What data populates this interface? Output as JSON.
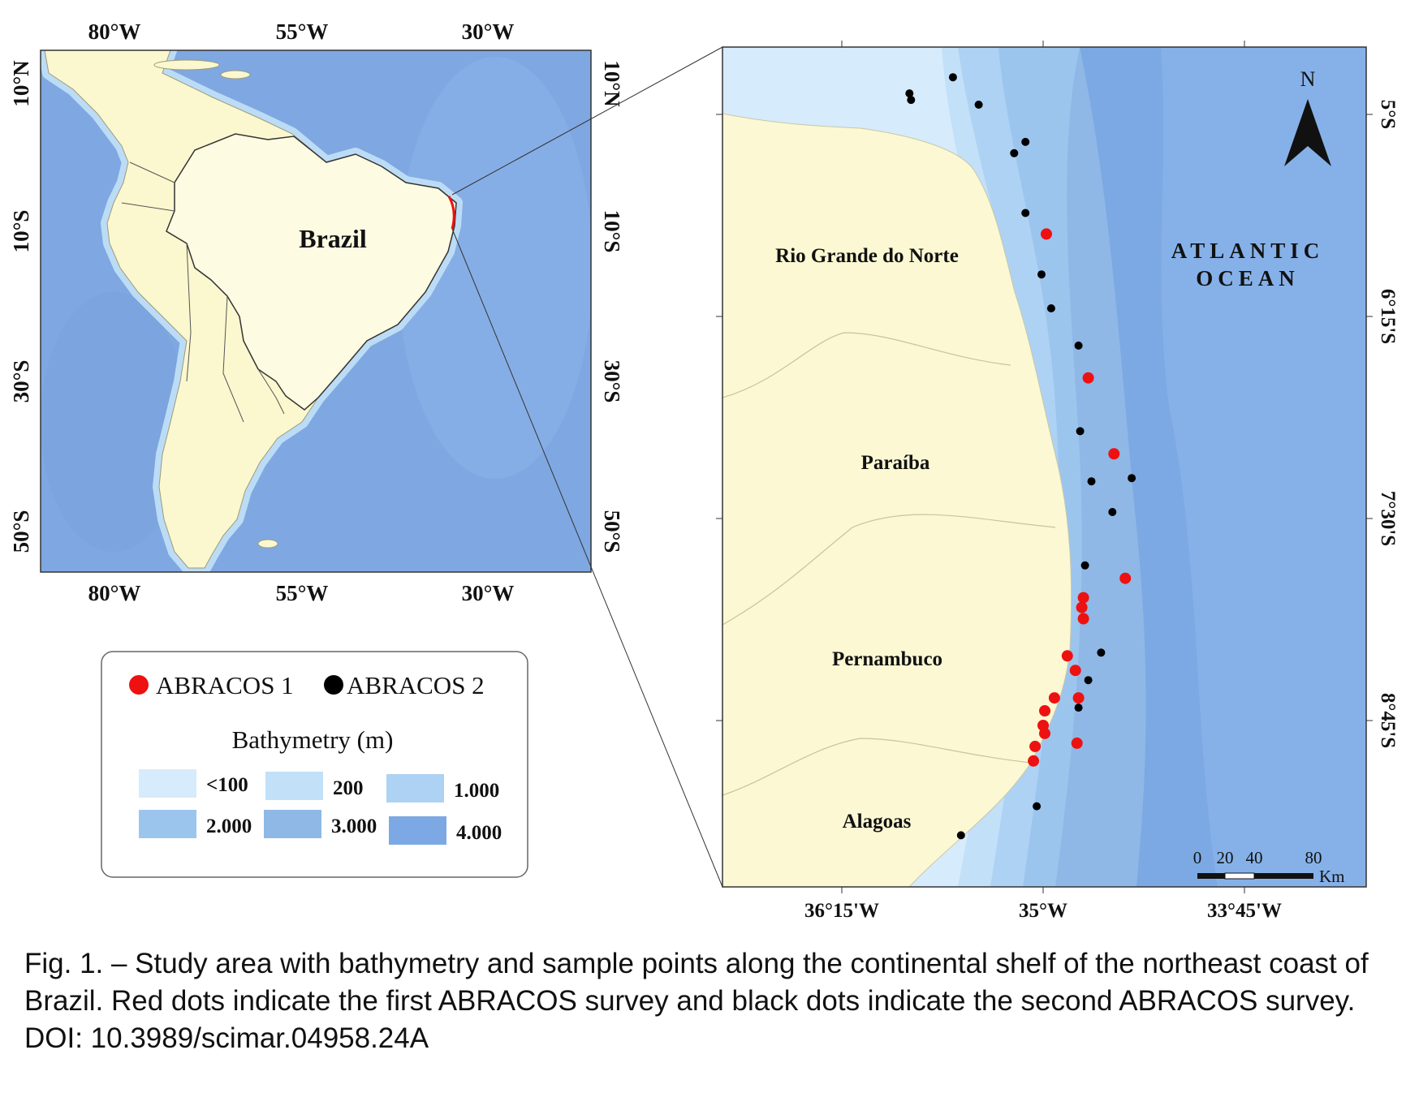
{
  "overview_map": {
    "country_label": "Brazil",
    "top_ticks": [
      "80°W",
      "55°W",
      "30°W"
    ],
    "bottom_ticks": [
      "80°W",
      "55°W",
      "30°W"
    ],
    "left_ticks": [
      "10°N",
      "10°S",
      "30°S",
      "50°S"
    ],
    "right_ticks": [
      "10°N",
      "10°S",
      "30°S",
      "50°S"
    ]
  },
  "detail_map": {
    "north_label": "N",
    "ocean_label_line1": "ATLANTIC",
    "ocean_label_line2": "OCEAN",
    "states": [
      "Rio Grande do Norte",
      "Paraíba",
      "Pernambuco",
      "Alagoas"
    ],
    "bottom_ticks": [
      "36°15'W",
      "35°W",
      "33°45'W"
    ],
    "right_ticks": [
      "5°S",
      "6°15'S",
      "7°30'S",
      "8°45'S"
    ],
    "scale_bar": {
      "labels": [
        "0",
        "20",
        "40",
        "80"
      ],
      "unit": "Km"
    },
    "survey_points": {
      "abracos1": [
        {
          "lon": -34.98,
          "lat": -5.74
        },
        {
          "lon": -34.72,
          "lat": -6.63
        },
        {
          "lon": -34.56,
          "lat": -7.1
        },
        {
          "lon": -34.49,
          "lat": -7.87
        },
        {
          "lon": -34.75,
          "lat": -7.99
        },
        {
          "lon": -34.76,
          "lat": -8.05
        },
        {
          "lon": -34.75,
          "lat": -8.12
        },
        {
          "lon": -34.85,
          "lat": -8.35
        },
        {
          "lon": -34.8,
          "lat": -8.44
        },
        {
          "lon": -34.93,
          "lat": -8.61
        },
        {
          "lon": -34.78,
          "lat": -8.61
        },
        {
          "lon": -34.99,
          "lat": -8.69
        },
        {
          "lon": -35.0,
          "lat": -8.78
        },
        {
          "lon": -34.99,
          "lat": -8.83
        },
        {
          "lon": -35.05,
          "lat": -8.91
        },
        {
          "lon": -35.06,
          "lat": -9.0
        },
        {
          "lon": -34.79,
          "lat": -8.89
        }
      ],
      "abracos2": [
        {
          "lon": -35.83,
          "lat": -4.87
        },
        {
          "lon": -35.82,
          "lat": -4.91
        },
        {
          "lon": -35.56,
          "lat": -4.77
        },
        {
          "lon": -35.4,
          "lat": -4.94
        },
        {
          "lon": -35.11,
          "lat": -5.17
        },
        {
          "lon": -35.18,
          "lat": -5.24
        },
        {
          "lon": -35.11,
          "lat": -5.61
        },
        {
          "lon": -35.01,
          "lat": -5.99
        },
        {
          "lon": -34.95,
          "lat": -6.2
        },
        {
          "lon": -34.78,
          "lat": -6.43
        },
        {
          "lon": -34.77,
          "lat": -6.96
        },
        {
          "lon": -34.7,
          "lat": -7.27
        },
        {
          "lon": -34.45,
          "lat": -7.25
        },
        {
          "lon": -34.57,
          "lat": -7.46
        },
        {
          "lon": -34.74,
          "lat": -7.79
        },
        {
          "lon": -34.64,
          "lat": -8.33
        },
        {
          "lon": -34.72,
          "lat": -8.5
        },
        {
          "lon": -34.78,
          "lat": -8.67
        },
        {
          "lon": -35.04,
          "lat": -9.28
        },
        {
          "lon": -35.51,
          "lat": -9.46
        }
      ]
    }
  },
  "legend": {
    "series1": "ABRACOS 1",
    "series2": "ABRACOS 2",
    "bathymetry_title": "Bathymetry (m)",
    "classes": [
      {
        "label": "<100",
        "color": "#d6ebfb"
      },
      {
        "label": "200",
        "color": "#c2e0f8"
      },
      {
        "label": "1.000",
        "color": "#aed2f3"
      },
      {
        "label": "2.000",
        "color": "#9cc5ee"
      },
      {
        "label": "3.000",
        "color": "#8fb8e6"
      },
      {
        "label": "4.000",
        "color": "#7ca9e3"
      }
    ],
    "series1_color": "#ee1111",
    "series2_color": "#000000"
  },
  "caption": "Fig. 1. – Study area with bathymetry and sample points along the continental shelf of the northeast coast of Brazil. Red dots indicate the first ABRACOS survey and black dots indicate the second ABRACOS survey. DOI: 10.3989/scimar.04958.24A"
}
